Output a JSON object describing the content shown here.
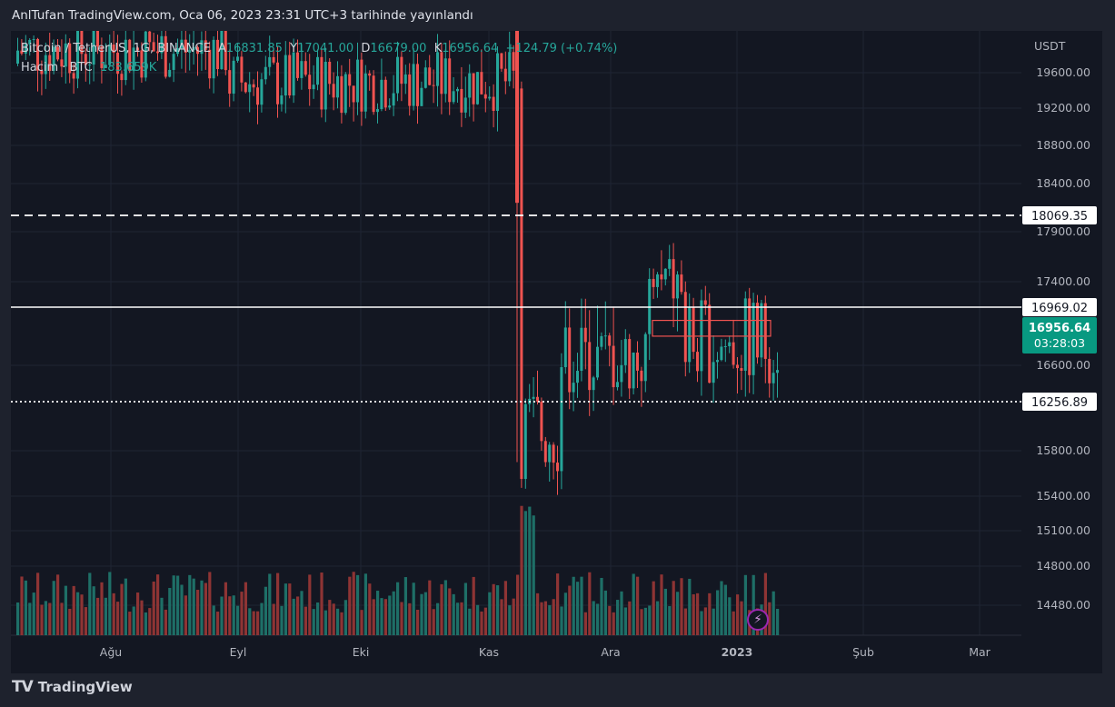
{
  "header": {
    "published_text": "AnlTufan TradingView.com, Oca 06, 2023 23:31 UTC+3 tarihinde yayınlandı"
  },
  "legend": {
    "pair": "Bitcoin / TetherUS, 1G, BINANCE",
    "open_label": "A",
    "open_value": "16831.85",
    "high_label": "Y",
    "high_value": "17041.00",
    "low_label": "D",
    "low_value": "16679.00",
    "close_label": "K",
    "close_value": "16956.64",
    "change": "+124.79 (+0.74%)",
    "volume_label": "Hacim · BTC",
    "volume_value": "183.659K"
  },
  "brand": {
    "logo_text": "TradingView"
  },
  "chart_data": {
    "type": "candlestick",
    "symbol": "Bitcoin / TetherUS",
    "interval": "1G",
    "exchange": "BINANCE",
    "currency_label": "USDT",
    "y_ticks": [
      "19600.00",
      "19200.00",
      "18800.00",
      "18400.00",
      "17900.00",
      "17400.00",
      "16600.00",
      "15800.00",
      "15400.00",
      "15100.00",
      "14800.00",
      "14480.00"
    ],
    "x_ticks": [
      "Ağu",
      "Eyl",
      "Eki",
      "Kas",
      "Ara",
      "2023",
      "Şub",
      "Mar"
    ],
    "price_levels": [
      {
        "value": 18069.35,
        "label": "18069.35",
        "style": "dashed",
        "color": "#ffffff"
      },
      {
        "value": 16969.02,
        "label": "16969.02",
        "style": "solid",
        "color": "#ffffff"
      },
      {
        "value": 16256.89,
        "label": "16256.89",
        "style": "dotted",
        "color": "#ffffff"
      }
    ],
    "last_price": {
      "value": 16956.64,
      "label": "16956.64",
      "countdown": "03:28:03",
      "color": "#089981"
    },
    "colors": {
      "up": "#26a69a",
      "down": "#ef5350",
      "volume_up": "#1e6f67",
      "volume_down": "#8e3434",
      "grid": "#1f2433"
    },
    "resistance_zone": {
      "from": 16860,
      "to": 16960,
      "color": "#ef5350"
    }
  }
}
